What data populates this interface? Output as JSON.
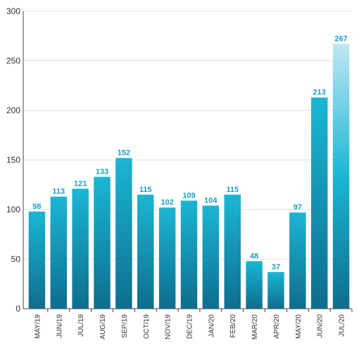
{
  "chart_data": {
    "type": "bar",
    "categories": [
      "MAY/19",
      "JUN/19",
      "JUL/19",
      "AUG/19",
      "SEP/19",
      "OCT/19",
      "NOV/19",
      "DEC/19",
      "JAN/20",
      "FEB/20",
      "MAR/20",
      "APR/20",
      "MAY/20",
      "JUN/20",
      "JUL/20"
    ],
    "values": [
      98,
      113,
      121,
      133,
      152,
      115,
      102,
      109,
      104,
      115,
      48,
      37,
      97,
      213,
      267
    ],
    "data_labels": [
      "98",
      "113",
      "121",
      "133",
      "152",
      "115",
      "102",
      "109",
      "104",
      "115",
      "48",
      "37",
      "97",
      "213",
      "267"
    ],
    "title": "",
    "xlabel": "",
    "ylabel": "",
    "ylim": [
      0,
      300
    ],
    "yticks": [
      0,
      50,
      100,
      150,
      200,
      250,
      300
    ],
    "grid": true,
    "legend": "none",
    "colors": {
      "bar_top": "#1bb6d4",
      "bar_bottom": "#0e6d8e",
      "bar_last_top": "#bfe7f3",
      "data_label": "#1a9fc7",
      "grid": "#e3e3e3",
      "axis": "#444444"
    }
  }
}
